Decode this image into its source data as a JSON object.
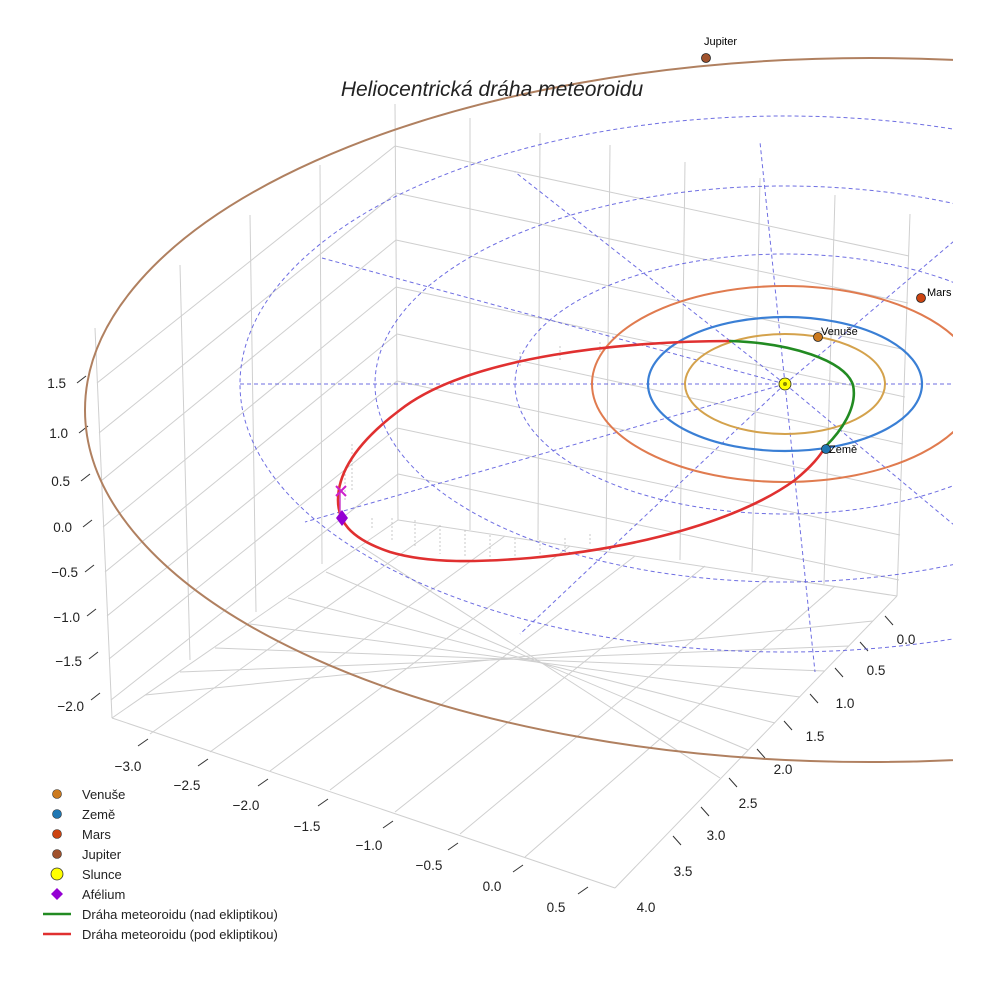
{
  "chart_data": {
    "type": "line",
    "projection": "3d",
    "title": "Heliocentrická dráha meteoroidu",
    "x_ticks": [
      "−3.0",
      "−2.5",
      "−2.0",
      "−1.5",
      "−1.0",
      "−0.5",
      "0.0",
      "0.5"
    ],
    "y_ticks": [
      "0.0",
      "0.5",
      "1.0",
      "1.5",
      "2.0",
      "2.5",
      "3.0",
      "3.5",
      "4.0"
    ],
    "z_ticks": [
      "1.5",
      "1.0",
      "0.5",
      "0.0",
      "−0.5",
      "−1.0",
      "−1.5",
      "−2.0"
    ],
    "xlim": [
      -3.3,
      0.7
    ],
    "ylim": [
      0.0,
      4.2
    ],
    "zlim": [
      -2.2,
      1.8
    ],
    "planets": [
      {
        "name": "Venuše",
        "orbit_radius_au": 0.72,
        "orbit_color": "#d4a24c",
        "marker_color": "#cc7a1f"
      },
      {
        "name": "Země",
        "orbit_radius_au": 1.0,
        "orbit_color": "#3a7fd5",
        "marker_color": "#1f77b4"
      },
      {
        "name": "Mars",
        "orbit_radius_au": 1.52,
        "orbit_color": "#e07b4f",
        "marker_color": "#cc4411"
      },
      {
        "name": "Jupiter",
        "orbit_radius_au": 5.2,
        "orbit_color": "#b08060",
        "marker_color": "#a0522d"
      }
    ],
    "sun": {
      "name": "Slunce",
      "color": "#ffff00"
    },
    "aphelion": {
      "name": "Afélium",
      "color": "#9400d3"
    },
    "meteoroid_orbit": {
      "above_label": "Dráha meteoroidu (nad ekliptikou)",
      "below_label": "Dráha meteoroidu (pod ekliptikou)",
      "above_color": "#228b22",
      "below_color": "#e03030"
    },
    "ecliptic_grid_color": "#5555dd",
    "legend": [
      "Venuše",
      "Země",
      "Mars",
      "Jupiter",
      "Slunce",
      "Afélium",
      "Dráha meteoroidu (nad ekliptikou)",
      "Dráha meteoroidu (pod ekliptikou)"
    ],
    "legend_position": "lower-left"
  }
}
